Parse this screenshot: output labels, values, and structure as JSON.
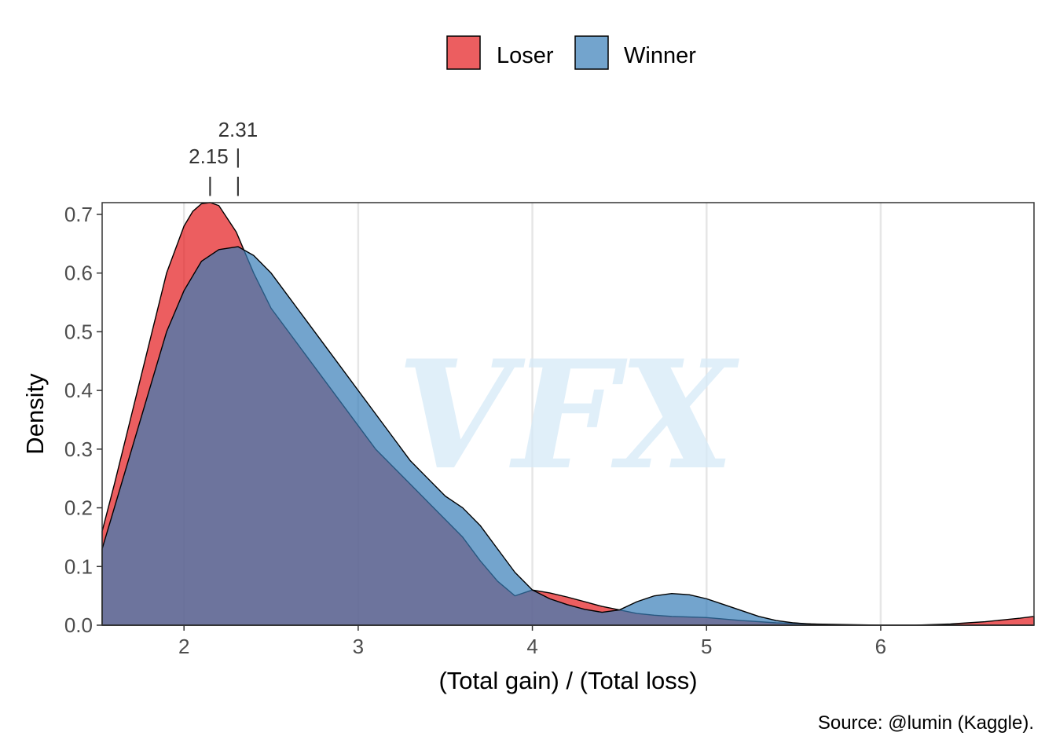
{
  "chart_data": {
    "type": "area",
    "xlabel": "(Total gain) / (Total loss)",
    "ylabel": "Density",
    "xlim": [
      1.53,
      6.88
    ],
    "ylim": [
      0,
      0.72
    ],
    "x_ticks": [
      2,
      3,
      4,
      5,
      6
    ],
    "y_ticks": [
      0.0,
      0.1,
      0.2,
      0.3,
      0.4,
      0.5,
      0.6,
      0.7
    ],
    "x_tick_labels": [
      "2",
      "3",
      "4",
      "5",
      "6"
    ],
    "y_tick_labels": [
      "0.0",
      "0.1",
      "0.2",
      "0.3",
      "0.4",
      "0.5",
      "0.6",
      "0.7"
    ],
    "grid": "vertical",
    "legend": {
      "placement": "top",
      "entries": [
        "Loser",
        "Winner"
      ]
    },
    "colors": {
      "Loser": "#e41a1c",
      "Winner": "#377eb8"
    },
    "fill_opacity": 0.7,
    "series": [
      {
        "name": "Loser",
        "x": [
          1.53,
          1.6,
          1.7,
          1.8,
          1.9,
          2.0,
          2.05,
          2.1,
          2.15,
          2.2,
          2.3,
          2.4,
          2.5,
          2.6,
          2.7,
          2.8,
          2.9,
          3.0,
          3.1,
          3.2,
          3.3,
          3.4,
          3.5,
          3.6,
          3.7,
          3.8,
          3.9,
          4.0,
          4.1,
          4.2,
          4.3,
          4.4,
          4.5,
          4.6,
          4.7,
          4.8,
          4.9,
          5.0,
          5.2,
          5.4,
          5.6,
          5.8,
          6.0,
          6.2,
          6.4,
          6.5,
          6.6,
          6.7,
          6.8,
          6.88
        ],
        "y": [
          0.16,
          0.24,
          0.36,
          0.48,
          0.6,
          0.68,
          0.705,
          0.718,
          0.72,
          0.715,
          0.67,
          0.6,
          0.54,
          0.5,
          0.46,
          0.42,
          0.38,
          0.34,
          0.3,
          0.27,
          0.24,
          0.21,
          0.18,
          0.15,
          0.11,
          0.075,
          0.05,
          0.06,
          0.055,
          0.048,
          0.04,
          0.032,
          0.026,
          0.02,
          0.017,
          0.015,
          0.014,
          0.013,
          0.008,
          0.004,
          0.002,
          0.001,
          0.0,
          0.0,
          0.002,
          0.004,
          0.006,
          0.009,
          0.012,
          0.015
        ]
      },
      {
        "name": "Winner",
        "x": [
          1.53,
          1.6,
          1.7,
          1.8,
          1.9,
          2.0,
          2.1,
          2.2,
          2.31,
          2.4,
          2.5,
          2.6,
          2.7,
          2.8,
          2.9,
          3.0,
          3.1,
          3.2,
          3.3,
          3.4,
          3.5,
          3.6,
          3.7,
          3.8,
          3.9,
          4.0,
          4.1,
          4.2,
          4.3,
          4.4,
          4.5,
          4.6,
          4.7,
          4.8,
          4.9,
          5.0,
          5.1,
          5.2,
          5.3,
          5.4,
          5.5,
          5.6,
          5.8,
          6.0,
          6.5,
          6.88
        ],
        "y": [
          0.13,
          0.2,
          0.3,
          0.4,
          0.5,
          0.57,
          0.62,
          0.64,
          0.645,
          0.63,
          0.6,
          0.56,
          0.52,
          0.48,
          0.44,
          0.4,
          0.36,
          0.32,
          0.28,
          0.25,
          0.22,
          0.2,
          0.17,
          0.13,
          0.09,
          0.06,
          0.045,
          0.035,
          0.027,
          0.022,
          0.026,
          0.04,
          0.05,
          0.054,
          0.052,
          0.045,
          0.035,
          0.025,
          0.015,
          0.008,
          0.004,
          0.002,
          0.0,
          0.0,
          0.0,
          0.0
        ]
      }
    ],
    "annotations": [
      {
        "label": "2.15",
        "marker": "|",
        "x": 2.15,
        "row": "lower"
      },
      {
        "label": "2.31",
        "marker": "|",
        "x": 2.31,
        "row": "upper"
      }
    ],
    "watermark": "VFX",
    "caption": "Source: @lumin (Kaggle)."
  }
}
